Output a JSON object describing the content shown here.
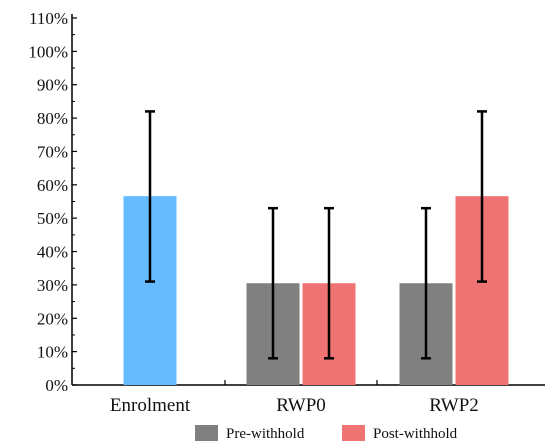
{
  "chart_data": {
    "type": "bar",
    "categories": [
      "Enrolment",
      "RWP0",
      "RWP2"
    ],
    "ylim": [
      0,
      110
    ],
    "ytick_values": [
      0,
      10,
      20,
      30,
      40,
      50,
      60,
      70,
      80,
      90,
      100,
      110
    ],
    "ytick_labels": [
      "0%",
      "10%",
      "20%",
      "30%",
      "40%",
      "50%",
      "60%",
      "70%",
      "80%",
      "90%",
      "100%",
      "110%"
    ],
    "grid": false,
    "legend_position": "bottom",
    "bars": [
      {
        "category": "Enrolment",
        "series": "",
        "value": 56.6,
        "err_low": 31,
        "err_high": 82,
        "color": "#66BBFF"
      },
      {
        "category": "RWP0",
        "series": "Pre-withhold",
        "value": 30.5,
        "err_low": 8,
        "err_high": 53,
        "color": "#808080"
      },
      {
        "category": "RWP0",
        "series": "Post-withhold",
        "value": 30.5,
        "err_low": 8,
        "err_high": 53,
        "color": "#F07373"
      },
      {
        "category": "RWP2",
        "series": "Pre-withhold",
        "value": 30.5,
        "err_low": 8,
        "err_high": 53,
        "color": "#808080"
      },
      {
        "category": "RWP2",
        "series": "Post-withhold",
        "value": 56.6,
        "err_low": 31,
        "err_high": 82,
        "color": "#F07373"
      }
    ],
    "legend": [
      {
        "name": "Pre-withhold",
        "color": "#808080"
      },
      {
        "name": "Post-withhold",
        "color": "#F07373"
      }
    ]
  }
}
